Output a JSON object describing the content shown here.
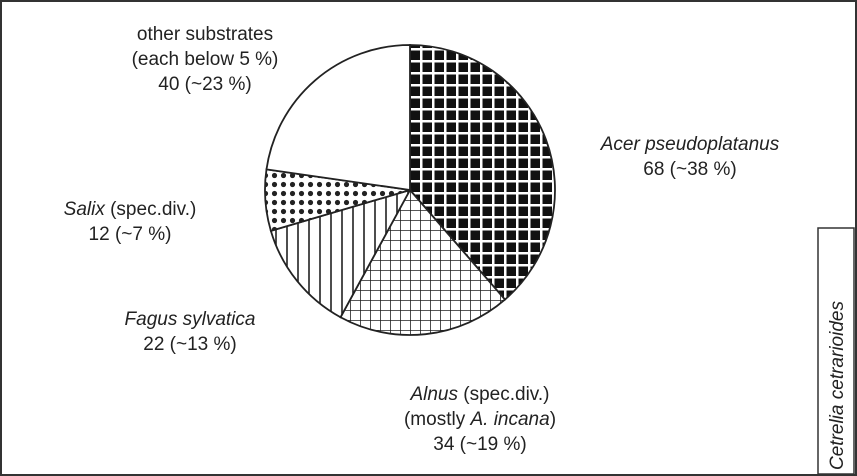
{
  "chart_data": {
    "type": "pie",
    "labels": [
      [
        [
          {
            "text": "Acer pseudoplatanus",
            "italic": true
          }
        ]
      ],
      [
        [
          {
            "text": "Alnus",
            "italic": true
          },
          {
            "text": " (spec.div.)",
            "italic": false
          }
        ],
        [
          {
            "text": "(mostly ",
            "italic": false
          },
          {
            "text": "A. incana",
            "italic": true
          },
          {
            "text": ")",
            "italic": false
          }
        ]
      ],
      [
        [
          {
            "text": "Fagus sylvatica",
            "italic": true
          }
        ]
      ],
      [
        [
          {
            "text": "Salix",
            "italic": true
          },
          {
            "text": " (spec.div.)",
            "italic": false
          }
        ]
      ],
      [
        [
          {
            "text": "other substrates",
            "italic": false
          }
        ],
        [
          {
            "text": "(each below 5 %)",
            "italic": false
          }
        ]
      ]
    ],
    "values": [
      68,
      34,
      22,
      12,
      40
    ],
    "value_labels": [
      "68 (~38 %)",
      "34 (~19 %)",
      "22 (~13 %)",
      "12 (~7 %)",
      "40 (~23 %)"
    ],
    "patterns": [
      "dark-grid",
      "fine-grid",
      "vertical-lines",
      "dots",
      "none"
    ],
    "side_label": "Cetrelia cetrarioides"
  }
}
